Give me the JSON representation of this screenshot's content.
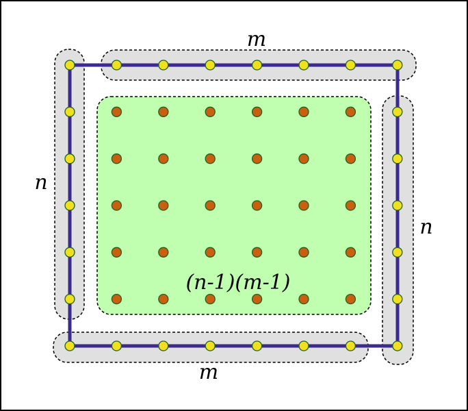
{
  "labels": {
    "top": "m",
    "bottom": "m",
    "left": "n",
    "right": "n",
    "interior": "(n-1)(m-1)"
  },
  "grid": {
    "columns": 8,
    "rows": 7,
    "interior_columns": 6,
    "interior_rows": 5
  },
  "colors": {
    "background": "#ffffff",
    "border": "#000000",
    "group_fill": "#e0e0e0",
    "interior_fill": "#c0ffb0",
    "path": "#3c2a8c",
    "boundary_dot": "#f0e020",
    "interior_dot": "#c86010",
    "dot_stroke": "#206020"
  }
}
